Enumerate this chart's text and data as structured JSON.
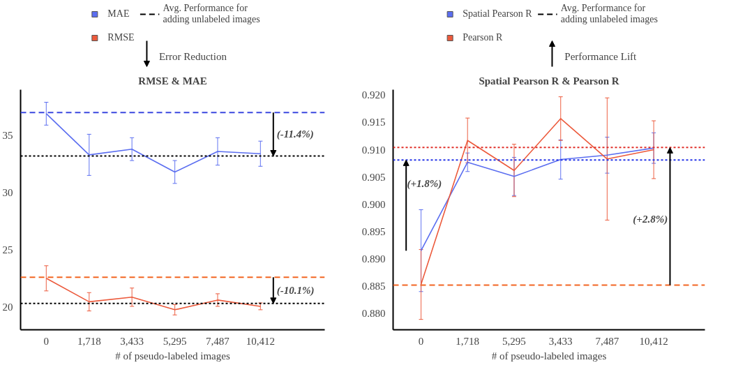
{
  "chart_data": [
    {
      "type": "line",
      "title": "RMSE & MAE",
      "xlabel": "# of pseudo-labeled images",
      "categories": [
        "0",
        "1,718",
        "3,433",
        "5,295",
        "7,487",
        "10,412"
      ],
      "series": [
        {
          "name": "MAE",
          "color": "#5b6ef0",
          "values": [
            36.9,
            33.3,
            33.8,
            31.8,
            33.6,
            33.4
          ],
          "errors": [
            1.0,
            1.8,
            1.0,
            1.0,
            1.2,
            1.1
          ]
        },
        {
          "name": "RMSE",
          "color": "#ec5a3c",
          "values": [
            22.5,
            20.45,
            20.85,
            19.75,
            20.6,
            20.05
          ],
          "errors": [
            1.1,
            0.8,
            0.8,
            0.45,
            0.55,
            0.3
          ]
        }
      ],
      "ylim": [
        18,
        39
      ],
      "yticks": [
        20,
        25,
        30,
        35
      ],
      "grid": false,
      "legend": "top",
      "marker": "none",
      "line_style": "solid",
      "ref_lines": [
        {
          "axis": "y",
          "value": 37.0,
          "color": "#3b48e0",
          "line_style": "dashed"
        },
        {
          "axis": "y",
          "value": 33.2,
          "color": "#000000",
          "line_style": "dotted"
        },
        {
          "axis": "y",
          "value": 22.6,
          "color": "#f26522",
          "line_style": "dashed"
        },
        {
          "axis": "y",
          "value": 20.3,
          "color": "#000000",
          "line_style": "dotted"
        }
      ],
      "annotations": [
        "Avg. Performance for\nadding unlabeled images",
        "Error Reduction",
        {
          "text": "(-11.4%)",
          "y": 33.2
        },
        {
          "text": "(-10.1%)",
          "y": 20.3
        }
      ]
    },
    {
      "type": "line",
      "title": "Spatial Pearson R & Pearson R",
      "xlabel": "# of pseudo-labeled images",
      "categories": [
        "0",
        "1,718",
        "5,295",
        "3,433",
        "7,487",
        "10,412"
      ],
      "series": [
        {
          "name": "Spatial Pearson R",
          "color": "#5b6ef0",
          "values": [
            0.8915,
            0.9077,
            0.9051,
            0.9082,
            0.909,
            0.9103
          ],
          "errors": [
            0.0075,
            0.0017,
            0.0035,
            0.0036,
            0.0033,
            0.0028
          ]
        },
        {
          "name": "Pearson R",
          "color": "#ec5a3c",
          "values": [
            0.8853,
            0.9117,
            0.9062,
            0.9157,
            0.9083,
            0.91
          ],
          "errors": [
            0.0064,
            0.0041,
            0.0048,
            0.004,
            0.0112,
            0.0053
          ]
        }
      ],
      "ylim": [
        0.877,
        0.921
      ],
      "yticks": [
        {
          "value": 0.88,
          "label": "0.880"
        },
        0.885,
        {
          "value": 0.89,
          "label": "0.890"
        },
        0.895,
        {
          "value": 0.9,
          "label": "0.900"
        },
        0.905,
        {
          "value": 0.91,
          "label": "0.910"
        },
        0.915,
        {
          "value": 0.92,
          "label": "0.920"
        }
      ],
      "grid": false,
      "legend": "top",
      "marker": "none",
      "line_style": "solid",
      "ref_lines": [
        {
          "axis": "y",
          "value": 0.9104,
          "color": "#e0302a",
          "line_style": "dotted"
        },
        {
          "axis": "y",
          "value": 0.9081,
          "color": "#2435e8",
          "line_style": "dotted"
        },
        {
          "axis": "y",
          "value": 0.8852,
          "color": "#f26522",
          "line_style": "dashed"
        }
      ],
      "annotations": [
        "Avg. Performance for\nadding unlabeled images",
        "Performance Lift",
        "(+1.8%)",
        "(+2.8%)"
      ]
    }
  ]
}
